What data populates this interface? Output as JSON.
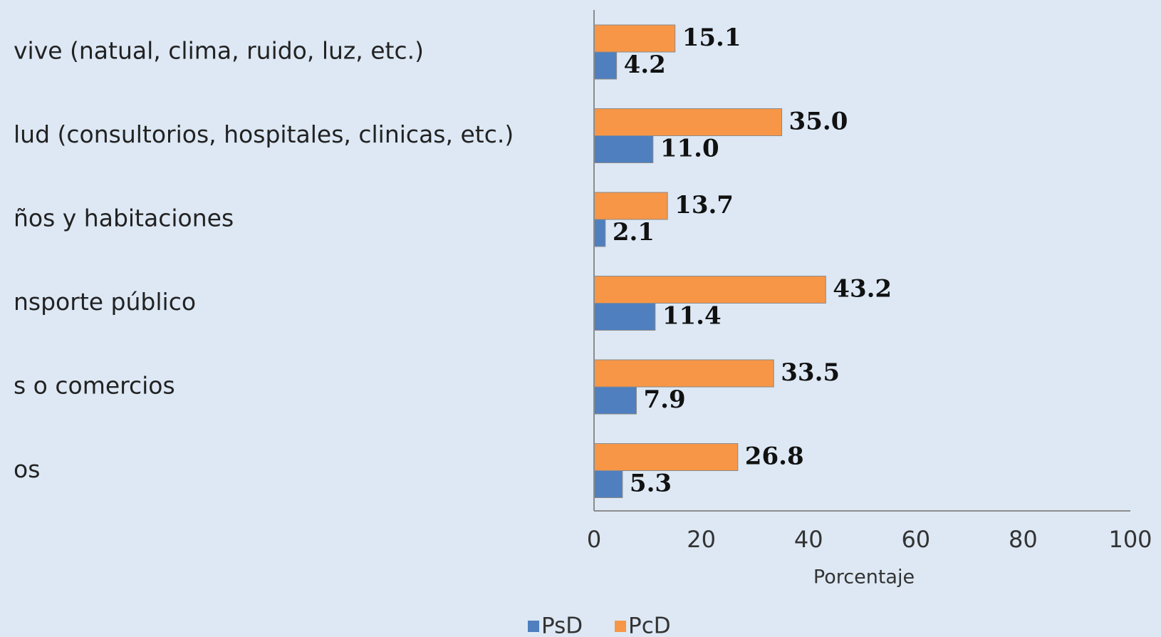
{
  "chart_data": {
    "type": "barh",
    "categories": [
      "vive (natual, clima, ruido, luz, etc.)",
      "lud (consultorios, hospitales, clinicas, etc.)",
      "ños y habitaciones",
      "nsporte público",
      "s o comercios",
      "os"
    ],
    "series": [
      {
        "name": "PsD",
        "color": "#4f7fbf",
        "values": [
          4.2,
          11.0,
          2.1,
          11.4,
          7.9,
          5.3
        ],
        "value_labels": [
          "4.2",
          "11.0",
          "2.1",
          "11.4",
          "7.9",
          "5.3"
        ]
      },
      {
        "name": "PcD",
        "color": "#f79646",
        "values": [
          15.1,
          35.0,
          13.7,
          43.2,
          33.5,
          26.8
        ],
        "value_labels": [
          "15.1",
          "35.0",
          "13.7",
          "43.2",
          "33.5",
          "26.8"
        ]
      }
    ],
    "xlabel": "Porcentaje",
    "xlim": [
      0,
      100
    ],
    "xticks": [
      0,
      20,
      40,
      60,
      80,
      100
    ],
    "grid": false,
    "legend": "bottom"
  }
}
